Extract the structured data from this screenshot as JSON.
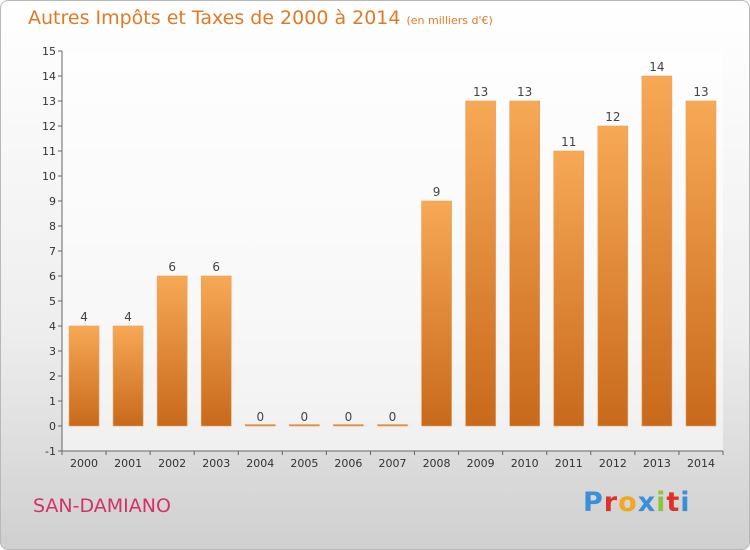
{
  "title": "Autres Impôts et Taxes de 2000 à 2014",
  "unit_label": "(en milliers d'€)",
  "commune": "SAN-DAMIANO",
  "logo": {
    "letters": [
      "P",
      "r",
      "o",
      "x",
      "i",
      "t",
      "i"
    ],
    "colors": [
      "#3b8fd6",
      "#e0302a",
      "#f2a623",
      "#3b8fd6",
      "#8cc63f",
      "#e0302a",
      "#3b8fd6"
    ]
  },
  "colors": {
    "bar": "#f08c30",
    "bar_light": "#f7a955",
    "bar_dark": "#c8691b",
    "title": "#e07a26",
    "commune": "#d4306a"
  },
  "chart_data": {
    "type": "bar",
    "categories": [
      "2000",
      "2001",
      "2002",
      "2003",
      "2004",
      "2005",
      "2006",
      "2007",
      "2008",
      "2009",
      "2010",
      "2011",
      "2012",
      "2013",
      "2014"
    ],
    "values": [
      4,
      4,
      6,
      6,
      0,
      0,
      0,
      0,
      9,
      13,
      13,
      11,
      12,
      14,
      13
    ],
    "yticks": [
      "-1",
      "0",
      "1",
      "2",
      "3",
      "4",
      "5",
      "6",
      "7",
      "8",
      "9",
      "10",
      "11",
      "12",
      "13",
      "14",
      "15"
    ],
    "ylim": [
      -1,
      15
    ],
    "grid": false,
    "data_labels": true
  }
}
